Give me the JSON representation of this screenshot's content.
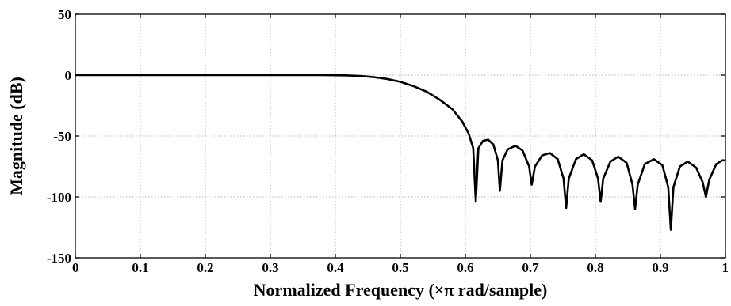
{
  "chart_data": {
    "type": "line",
    "title": "",
    "xlabel": "Normalized Frequency  (×π rad/sample)",
    "ylabel": "Magnitude (dB)",
    "xlim": [
      0,
      1
    ],
    "ylim": [
      -150,
      50
    ],
    "grid": true,
    "x_ticks": [
      0,
      0.1,
      0.2,
      0.3,
      0.4,
      0.5,
      0.6,
      0.7,
      0.8,
      0.9,
      1
    ],
    "x_tick_labels": [
      "0",
      "0.1",
      "0.2",
      "0.3",
      "0.4",
      "0.5",
      "0.6",
      "0.7",
      "0.8",
      "0.9",
      "1"
    ],
    "y_ticks": [
      50,
      0,
      -50,
      -100,
      -150
    ],
    "y_tick_labels": [
      "50",
      "0",
      "-50",
      "-100",
      "-150"
    ],
    "series": [
      {
        "color": "#000000",
        "points": [
          [
            0,
            0
          ],
          [
            0.1,
            0
          ],
          [
            0.2,
            0
          ],
          [
            0.3,
            0
          ],
          [
            0.38,
            0
          ],
          [
            0.4,
            -0.1
          ],
          [
            0.42,
            -0.3
          ],
          [
            0.44,
            -0.8
          ],
          [
            0.46,
            -1.7
          ],
          [
            0.48,
            -3.2
          ],
          [
            0.5,
            -5.5
          ],
          [
            0.52,
            -9
          ],
          [
            0.54,
            -13.5
          ],
          [
            0.56,
            -20
          ],
          [
            0.58,
            -28
          ],
          [
            0.595,
            -38
          ],
          [
            0.605,
            -48
          ],
          [
            0.612,
            -60
          ],
          [
            0.616,
            -104
          ],
          [
            0.62,
            -60
          ],
          [
            0.627,
            -54
          ],
          [
            0.635,
            -53
          ],
          [
            0.643,
            -57
          ],
          [
            0.65,
            -70
          ],
          [
            0.653,
            -95
          ],
          [
            0.657,
            -70
          ],
          [
            0.665,
            -61
          ],
          [
            0.677,
            -58
          ],
          [
            0.688,
            -62
          ],
          [
            0.698,
            -75
          ],
          [
            0.702,
            -90
          ],
          [
            0.707,
            -75
          ],
          [
            0.718,
            -66
          ],
          [
            0.73,
            -64
          ],
          [
            0.742,
            -69
          ],
          [
            0.751,
            -85
          ],
          [
            0.755,
            -109
          ],
          [
            0.759,
            -85
          ],
          [
            0.77,
            -69
          ],
          [
            0.782,
            -65
          ],
          [
            0.795,
            -70
          ],
          [
            0.804,
            -85
          ],
          [
            0.808,
            -104
          ],
          [
            0.812,
            -85
          ],
          [
            0.823,
            -71
          ],
          [
            0.835,
            -67
          ],
          [
            0.848,
            -72
          ],
          [
            0.857,
            -90
          ],
          [
            0.861,
            -110
          ],
          [
            0.865,
            -90
          ],
          [
            0.876,
            -73
          ],
          [
            0.89,
            -69
          ],
          [
            0.903,
            -74
          ],
          [
            0.912,
            -92
          ],
          [
            0.916,
            -127
          ],
          [
            0.92,
            -92
          ],
          [
            0.93,
            -75
          ],
          [
            0.942,
            -71
          ],
          [
            0.955,
            -76
          ],
          [
            0.965,
            -88
          ],
          [
            0.97,
            -100
          ],
          [
            0.975,
            -86
          ],
          [
            0.986,
            -73
          ],
          [
            0.995,
            -70
          ],
          [
            1.0,
            -70
          ]
        ]
      }
    ]
  }
}
